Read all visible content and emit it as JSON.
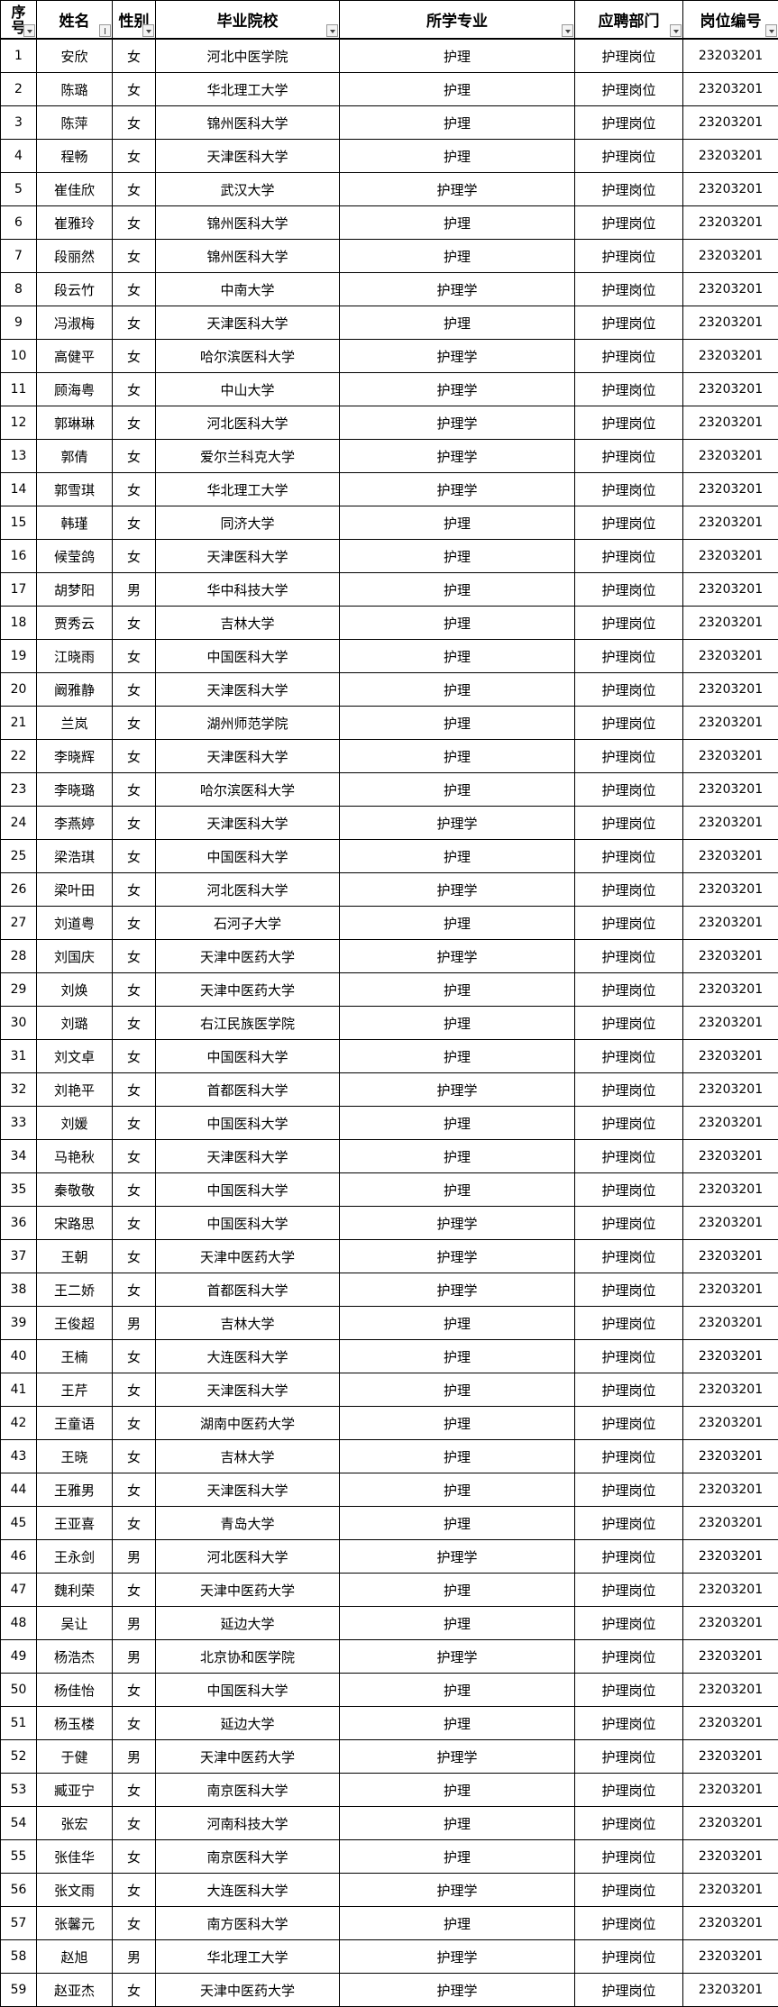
{
  "headers": [
    "序号",
    "姓名",
    "性别",
    "毕业院校",
    "所学专业",
    "应聘部门",
    "岗位编号"
  ],
  "filter_icons": [
    "dropdown",
    "sort-ascending",
    "dropdown",
    "dropdown",
    "dropdown",
    "dropdown",
    "dropdown"
  ],
  "rows": [
    [
      "1",
      "安欣",
      "女",
      "河北中医学院",
      "护理",
      "护理岗位",
      "23203201"
    ],
    [
      "2",
      "陈璐",
      "女",
      "华北理工大学",
      "护理",
      "护理岗位",
      "23203201"
    ],
    [
      "3",
      "陈萍",
      "女",
      "锦州医科大学",
      "护理",
      "护理岗位",
      "23203201"
    ],
    [
      "4",
      "程畅",
      "女",
      "天津医科大学",
      "护理",
      "护理岗位",
      "23203201"
    ],
    [
      "5",
      "崔佳欣",
      "女",
      "武汉大学",
      "护理学",
      "护理岗位",
      "23203201"
    ],
    [
      "6",
      "崔雅玲",
      "女",
      "锦州医科大学",
      "护理",
      "护理岗位",
      "23203201"
    ],
    [
      "7",
      "段丽然",
      "女",
      "锦州医科大学",
      "护理",
      "护理岗位",
      "23203201"
    ],
    [
      "8",
      "段云竹",
      "女",
      "中南大学",
      "护理学",
      "护理岗位",
      "23203201"
    ],
    [
      "9",
      "冯淑梅",
      "女",
      "天津医科大学",
      "护理",
      "护理岗位",
      "23203201"
    ],
    [
      "10",
      "高健平",
      "女",
      "哈尔滨医科大学",
      "护理学",
      "护理岗位",
      "23203201"
    ],
    [
      "11",
      "顾海粤",
      "女",
      "中山大学",
      "护理学",
      "护理岗位",
      "23203201"
    ],
    [
      "12",
      "郭琳琳",
      "女",
      "河北医科大学",
      "护理学",
      "护理岗位",
      "23203201"
    ],
    [
      "13",
      "郭倩",
      "女",
      "爱尔兰科克大学",
      "护理学",
      "护理岗位",
      "23203201"
    ],
    [
      "14",
      "郭雪琪",
      "女",
      "华北理工大学",
      "护理学",
      "护理岗位",
      "23203201"
    ],
    [
      "15",
      "韩瑾",
      "女",
      "同济大学",
      "护理",
      "护理岗位",
      "23203201"
    ],
    [
      "16",
      "候莹鸽",
      "女",
      "天津医科大学",
      "护理",
      "护理岗位",
      "23203201"
    ],
    [
      "17",
      "胡梦阳",
      "男",
      "华中科技大学",
      "护理",
      "护理岗位",
      "23203201"
    ],
    [
      "18",
      "贾秀云",
      "女",
      "吉林大学",
      "护理",
      "护理岗位",
      "23203201"
    ],
    [
      "19",
      "江晓雨",
      "女",
      "中国医科大学",
      "护理",
      "护理岗位",
      "23203201"
    ],
    [
      "20",
      "阚雅静",
      "女",
      "天津医科大学",
      "护理",
      "护理岗位",
      "23203201"
    ],
    [
      "21",
      "兰岚",
      "女",
      "湖州师范学院",
      "护理",
      "护理岗位",
      "23203201"
    ],
    [
      "22",
      "李晓辉",
      "女",
      "天津医科大学",
      "护理",
      "护理岗位",
      "23203201"
    ],
    [
      "23",
      "李晓璐",
      "女",
      "哈尔滨医科大学",
      "护理",
      "护理岗位",
      "23203201"
    ],
    [
      "24",
      "李燕婷",
      "女",
      "天津医科大学",
      "护理学",
      "护理岗位",
      "23203201"
    ],
    [
      "25",
      "梁浩琪",
      "女",
      "中国医科大学",
      "护理",
      "护理岗位",
      "23203201"
    ],
    [
      "26",
      "梁叶田",
      "女",
      "河北医科大学",
      "护理学",
      "护理岗位",
      "23203201"
    ],
    [
      "27",
      "刘道粤",
      "女",
      "石河子大学",
      "护理",
      "护理岗位",
      "23203201"
    ],
    [
      "28",
      "刘国庆",
      "女",
      "天津中医药大学",
      "护理学",
      "护理岗位",
      "23203201"
    ],
    [
      "29",
      "刘焕",
      "女",
      "天津中医药大学",
      "护理",
      "护理岗位",
      "23203201"
    ],
    [
      "30",
      "刘璐",
      "女",
      "右江民族医学院",
      "护理",
      "护理岗位",
      "23203201"
    ],
    [
      "31",
      "刘文卓",
      "女",
      "中国医科大学",
      "护理",
      "护理岗位",
      "23203201"
    ],
    [
      "32",
      "刘艳平",
      "女",
      "首都医科大学",
      "护理学",
      "护理岗位",
      "23203201"
    ],
    [
      "33",
      "刘媛",
      "女",
      "中国医科大学",
      "护理",
      "护理岗位",
      "23203201"
    ],
    [
      "34",
      "马艳秋",
      "女",
      "天津医科大学",
      "护理",
      "护理岗位",
      "23203201"
    ],
    [
      "35",
      "秦敬敬",
      "女",
      "中国医科大学",
      "护理",
      "护理岗位",
      "23203201"
    ],
    [
      "36",
      "宋路思",
      "女",
      "中国医科大学",
      "护理学",
      "护理岗位",
      "23203201"
    ],
    [
      "37",
      "王朝",
      "女",
      "天津中医药大学",
      "护理学",
      "护理岗位",
      "23203201"
    ],
    [
      "38",
      "王二娇",
      "女",
      "首都医科大学",
      "护理学",
      "护理岗位",
      "23203201"
    ],
    [
      "39",
      "王俊超",
      "男",
      "吉林大学",
      "护理",
      "护理岗位",
      "23203201"
    ],
    [
      "40",
      "王楠",
      "女",
      "大连医科大学",
      "护理",
      "护理岗位",
      "23203201"
    ],
    [
      "41",
      "王芹",
      "女",
      "天津医科大学",
      "护理",
      "护理岗位",
      "23203201"
    ],
    [
      "42",
      "王童语",
      "女",
      "湖南中医药大学",
      "护理",
      "护理岗位",
      "23203201"
    ],
    [
      "43",
      "王晓",
      "女",
      "吉林大学",
      "护理",
      "护理岗位",
      "23203201"
    ],
    [
      "44",
      "王雅男",
      "女",
      "天津医科大学",
      "护理",
      "护理岗位",
      "23203201"
    ],
    [
      "45",
      "王亚喜",
      "女",
      "青岛大学",
      "护理",
      "护理岗位",
      "23203201"
    ],
    [
      "46",
      "王永剑",
      "男",
      "河北医科大学",
      "护理学",
      "护理岗位",
      "23203201"
    ],
    [
      "47",
      "魏利荣",
      "女",
      "天津中医药大学",
      "护理",
      "护理岗位",
      "23203201"
    ],
    [
      "48",
      "吴让",
      "男",
      "延边大学",
      "护理",
      "护理岗位",
      "23203201"
    ],
    [
      "49",
      "杨浩杰",
      "男",
      "北京协和医学院",
      "护理学",
      "护理岗位",
      "23203201"
    ],
    [
      "50",
      "杨佳怡",
      "女",
      "中国医科大学",
      "护理",
      "护理岗位",
      "23203201"
    ],
    [
      "51",
      "杨玉楼",
      "女",
      "延边大学",
      "护理",
      "护理岗位",
      "23203201"
    ],
    [
      "52",
      "于健",
      "男",
      "天津中医药大学",
      "护理学",
      "护理岗位",
      "23203201"
    ],
    [
      "53",
      "臧亚宁",
      "女",
      "南京医科大学",
      "护理",
      "护理岗位",
      "23203201"
    ],
    [
      "54",
      "张宏",
      "女",
      "河南科技大学",
      "护理",
      "护理岗位",
      "23203201"
    ],
    [
      "55",
      "张佳华",
      "女",
      "南京医科大学",
      "护理",
      "护理岗位",
      "23203201"
    ],
    [
      "56",
      "张文雨",
      "女",
      "大连医科大学",
      "护理学",
      "护理岗位",
      "23203201"
    ],
    [
      "57",
      "张馨元",
      "女",
      "南方医科大学",
      "护理",
      "护理岗位",
      "23203201"
    ],
    [
      "58",
      "赵旭",
      "男",
      "华北理工大学",
      "护理学",
      "护理岗位",
      "23203201"
    ],
    [
      "59",
      "赵亚杰",
      "女",
      "天津中医药大学",
      "护理学",
      "护理岗位",
      "23203201"
    ]
  ]
}
